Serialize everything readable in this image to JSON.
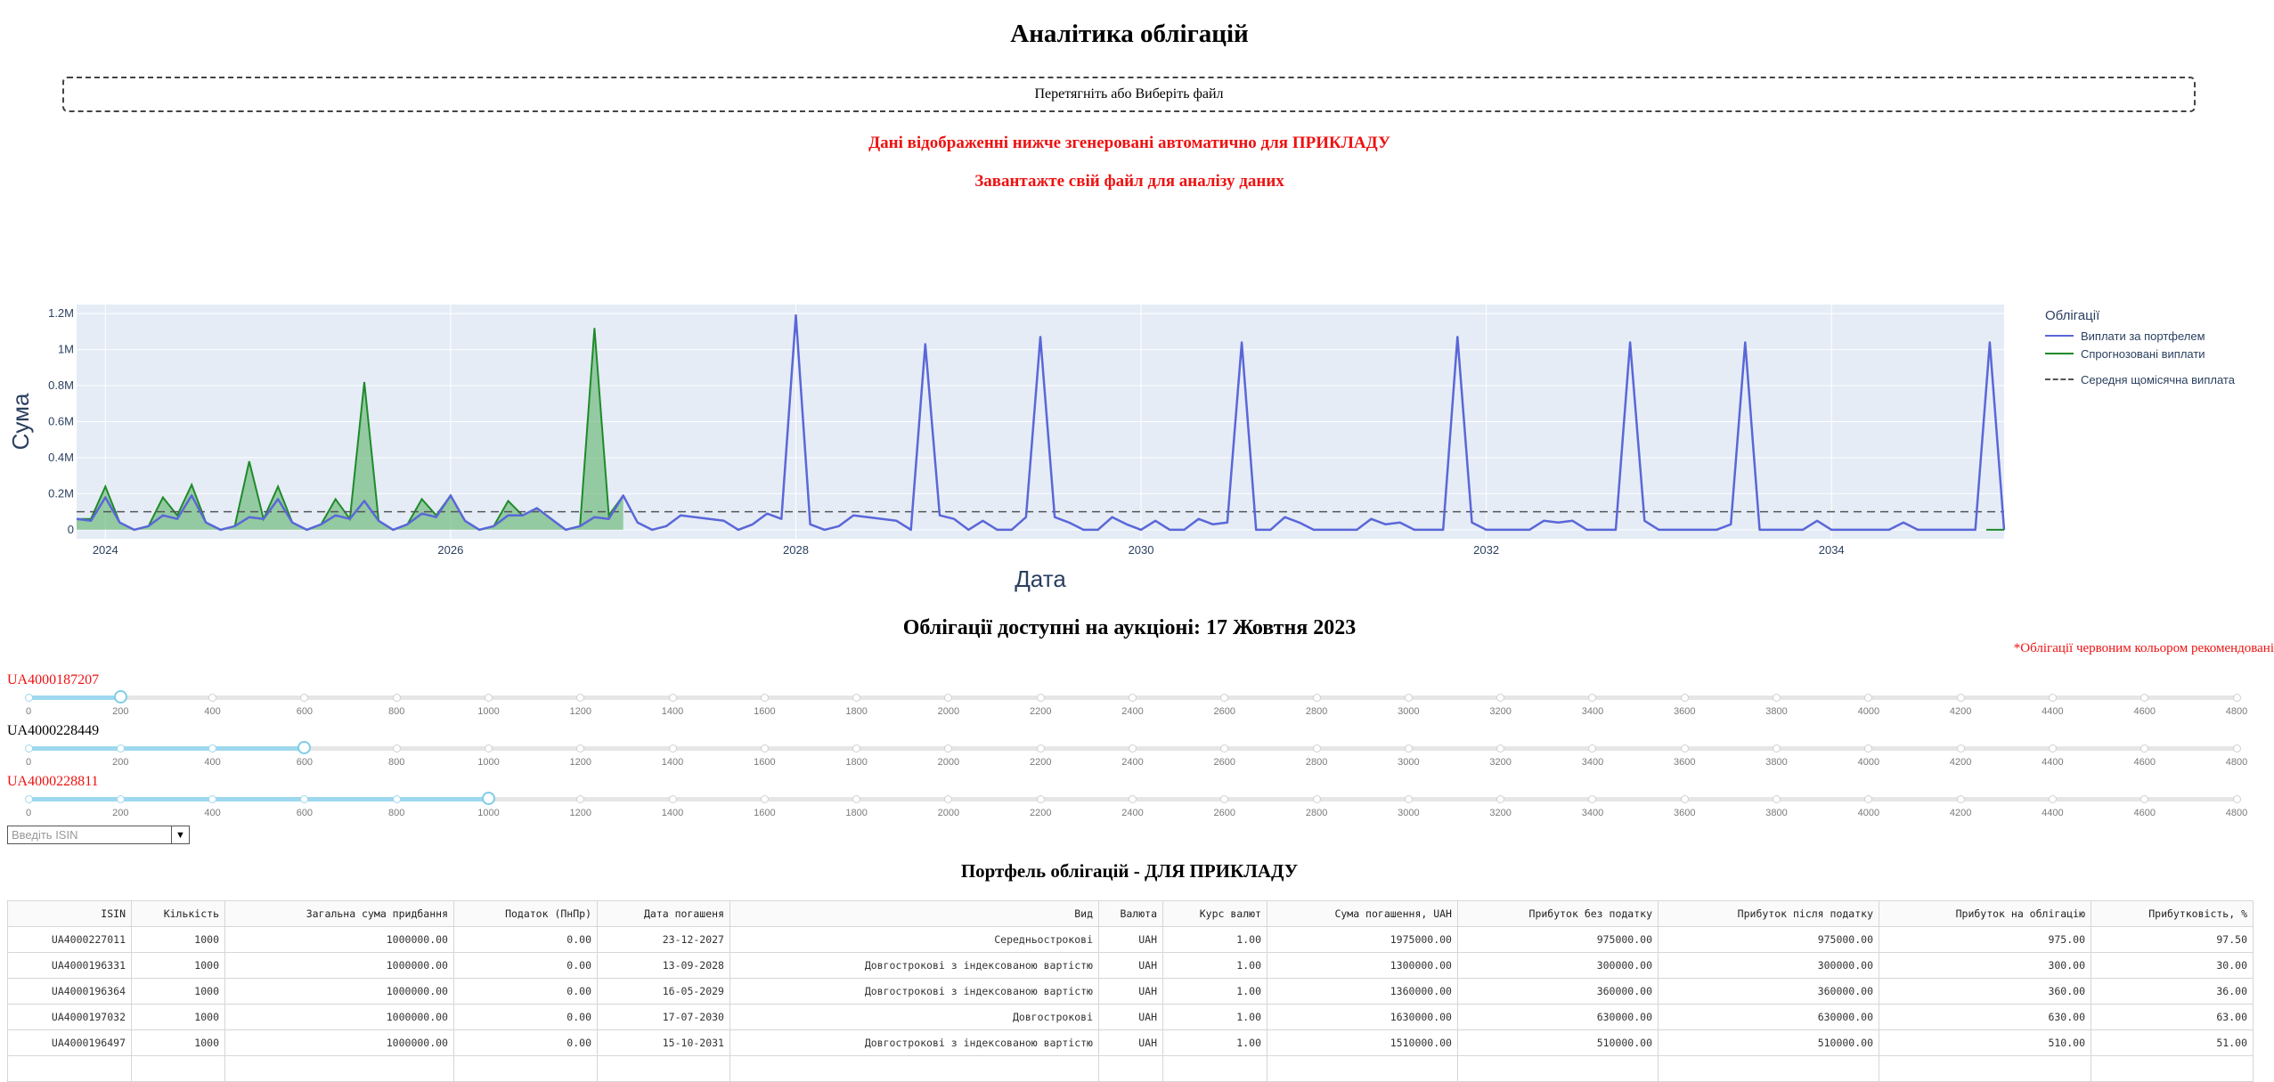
{
  "page": {
    "title": "Аналітика облігацій",
    "upload": {
      "prefix": "Перетягніть або",
      "link": "Виберіть файл"
    },
    "notice_example": "Дані відображенні нижче згенеровані автоматично для ПРИКЛАДУ",
    "notice_upload": "Завантажте свій файл для аналізу даних"
  },
  "colors": {
    "portfolio_line": "#5a67d8",
    "forecast_line": "#1f8a2a",
    "forecast_fill": "#5cb46b",
    "plot_bg": "#e5ecf6",
    "recommended": "#ee1111"
  },
  "chart_data": {
    "type": "line",
    "xlabel": "Дата",
    "ylabel": "Сума",
    "x_ticks": [
      "2024",
      "2026",
      "2028",
      "2030",
      "2032",
      "2034"
    ],
    "y_ticks": [
      "0",
      "0.2M",
      "0.4M",
      "0.6M",
      "0.8M",
      "1M",
      "1.2M"
    ],
    "xlim": [
      "2023-11",
      "2035-01"
    ],
    "ylim": [
      -50000,
      1250000
    ],
    "legend_title": "Облігації",
    "legend_position": "right",
    "series": [
      {
        "name": "Виплати за портфелем",
        "kind": "line",
        "color": "#5a67d8",
        "points": [
          [
            "2023-11",
            60000
          ],
          [
            "2023-12",
            50000
          ],
          [
            "2024-01",
            180000
          ],
          [
            "2024-02",
            40000
          ],
          [
            "2024-03",
            0
          ],
          [
            "2024-04",
            20000
          ],
          [
            "2024-05",
            80000
          ],
          [
            "2024-06",
            60000
          ],
          [
            "2024-07",
            190000
          ],
          [
            "2024-08",
            40000
          ],
          [
            "2024-09",
            0
          ],
          [
            "2024-10",
            20000
          ],
          [
            "2024-11",
            70000
          ],
          [
            "2024-12",
            60000
          ],
          [
            "2025-01",
            170000
          ],
          [
            "2025-02",
            40000
          ],
          [
            "2025-03",
            0
          ],
          [
            "2025-04",
            30000
          ],
          [
            "2025-05",
            80000
          ],
          [
            "2025-06",
            60000
          ],
          [
            "2025-07",
            160000
          ],
          [
            "2025-08",
            50000
          ],
          [
            "2025-09",
            0
          ],
          [
            "2025-10",
            30000
          ],
          [
            "2025-11",
            90000
          ],
          [
            "2025-12",
            70000
          ],
          [
            "2026-01",
            190000
          ],
          [
            "2026-02",
            50000
          ],
          [
            "2026-03",
            0
          ],
          [
            "2026-04",
            20000
          ],
          [
            "2026-05",
            80000
          ],
          [
            "2026-06",
            80000
          ],
          [
            "2026-07",
            120000
          ],
          [
            "2026-08",
            60000
          ],
          [
            "2026-09",
            0
          ],
          [
            "2026-10",
            20000
          ],
          [
            "2026-11",
            70000
          ],
          [
            "2026-12",
            60000
          ],
          [
            "2027-01",
            190000
          ],
          [
            "2027-02",
            40000
          ],
          [
            "2027-03",
            0
          ],
          [
            "2027-04",
            20000
          ],
          [
            "2027-05",
            80000
          ],
          [
            "2027-06",
            70000
          ],
          [
            "2027-07",
            60000
          ],
          [
            "2027-08",
            50000
          ],
          [
            "2027-09",
            0
          ],
          [
            "2027-10",
            30000
          ],
          [
            "2027-11",
            90000
          ],
          [
            "2027-12",
            60000
          ],
          [
            "2028-01",
            1190000
          ],
          [
            "2028-02",
            30000
          ],
          [
            "2028-03",
            0
          ],
          [
            "2028-04",
            20000
          ],
          [
            "2028-05",
            80000
          ],
          [
            "2028-06",
            70000
          ],
          [
            "2028-07",
            60000
          ],
          [
            "2028-08",
            50000
          ],
          [
            "2028-09",
            0
          ],
          [
            "2028-10",
            1030000
          ],
          [
            "2028-11",
            80000
          ],
          [
            "2028-12",
            60000
          ],
          [
            "2029-01",
            0
          ],
          [
            "2029-02",
            50000
          ],
          [
            "2029-03",
            0
          ],
          [
            "2029-04",
            0
          ],
          [
            "2029-05",
            70000
          ],
          [
            "2029-06",
            1070000
          ],
          [
            "2029-07",
            70000
          ],
          [
            "2029-08",
            40000
          ],
          [
            "2029-09",
            0
          ],
          [
            "2029-10",
            0
          ],
          [
            "2029-11",
            70000
          ],
          [
            "2029-12",
            30000
          ],
          [
            "2030-01",
            0
          ],
          [
            "2030-02",
            50000
          ],
          [
            "2030-03",
            0
          ],
          [
            "2030-04",
            0
          ],
          [
            "2030-05",
            60000
          ],
          [
            "2030-06",
            30000
          ],
          [
            "2030-07",
            40000
          ],
          [
            "2030-08",
            1040000
          ],
          [
            "2030-09",
            0
          ],
          [
            "2030-10",
            0
          ],
          [
            "2030-11",
            70000
          ],
          [
            "2030-12",
            40000
          ],
          [
            "2031-01",
            0
          ],
          [
            "2031-02",
            0
          ],
          [
            "2031-03",
            0
          ],
          [
            "2031-04",
            0
          ],
          [
            "2031-05",
            60000
          ],
          [
            "2031-06",
            30000
          ],
          [
            "2031-07",
            40000
          ],
          [
            "2031-08",
            0
          ],
          [
            "2031-09",
            0
          ],
          [
            "2031-10",
            0
          ],
          [
            "2031-11",
            1070000
          ],
          [
            "2031-12",
            40000
          ],
          [
            "2032-01",
            0
          ],
          [
            "2032-02",
            0
          ],
          [
            "2032-03",
            0
          ],
          [
            "2032-04",
            0
          ],
          [
            "2032-05",
            50000
          ],
          [
            "2032-06",
            40000
          ],
          [
            "2032-07",
            50000
          ],
          [
            "2032-08",
            0
          ],
          [
            "2032-09",
            0
          ],
          [
            "2032-10",
            0
          ],
          [
            "2032-11",
            1040000
          ],
          [
            "2032-12",
            50000
          ],
          [
            "2033-01",
            0
          ],
          [
            "2033-02",
            0
          ],
          [
            "2033-03",
            0
          ],
          [
            "2033-04",
            0
          ],
          [
            "2033-05",
            0
          ],
          [
            "2033-06",
            30000
          ],
          [
            "2033-07",
            1040000
          ],
          [
            "2033-08",
            0
          ],
          [
            "2033-09",
            0
          ],
          [
            "2033-10",
            0
          ],
          [
            "2033-11",
            0
          ],
          [
            "2033-12",
            50000
          ],
          [
            "2034-01",
            0
          ],
          [
            "2034-02",
            0
          ],
          [
            "2034-03",
            0
          ],
          [
            "2034-04",
            0
          ],
          [
            "2034-05",
            0
          ],
          [
            "2034-06",
            40000
          ],
          [
            "2034-07",
            0
          ],
          [
            "2034-08",
            0
          ],
          [
            "2034-09",
            0
          ],
          [
            "2034-10",
            0
          ],
          [
            "2034-11",
            0
          ],
          [
            "2034-12",
            1040000
          ],
          [
            "2035-01",
            0
          ]
        ]
      },
      {
        "name": "Спрогнозовані виплати",
        "kind": "area",
        "color": "#1f8a2a",
        "points": [
          [
            "2023-11",
            60000
          ],
          [
            "2023-12",
            60000
          ],
          [
            "2024-01",
            240000
          ],
          [
            "2024-02",
            40000
          ],
          [
            "2024-03",
            0
          ],
          [
            "2024-04",
            20000
          ],
          [
            "2024-05",
            180000
          ],
          [
            "2024-06",
            80000
          ],
          [
            "2024-07",
            250000
          ],
          [
            "2024-08",
            40000
          ],
          [
            "2024-09",
            0
          ],
          [
            "2024-10",
            20000
          ],
          [
            "2024-11",
            380000
          ],
          [
            "2024-12",
            60000
          ],
          [
            "2025-01",
            240000
          ],
          [
            "2025-02",
            40000
          ],
          [
            "2025-03",
            0
          ],
          [
            "2025-04",
            30000
          ],
          [
            "2025-05",
            170000
          ],
          [
            "2025-06",
            60000
          ],
          [
            "2025-07",
            820000
          ],
          [
            "2025-08",
            50000
          ],
          [
            "2025-09",
            0
          ],
          [
            "2025-10",
            30000
          ],
          [
            "2025-11",
            170000
          ],
          [
            "2025-12",
            80000
          ],
          [
            "2026-01",
            190000
          ],
          [
            "2026-02",
            50000
          ],
          [
            "2026-03",
            0
          ],
          [
            "2026-04",
            20000
          ],
          [
            "2026-05",
            160000
          ],
          [
            "2026-06",
            80000
          ],
          [
            "2026-07",
            120000
          ],
          [
            "2026-08",
            60000
          ],
          [
            "2026-09",
            0
          ],
          [
            "2026-10",
            20000
          ],
          [
            "2026-11",
            1120000
          ],
          [
            "2026-12",
            80000
          ],
          [
            "2027-01",
            190000
          ]
        ]
      },
      {
        "name": "Середня щомісячна виплата",
        "kind": "dashed",
        "color": "#555555",
        "value": 100000
      }
    ]
  },
  "auction": {
    "title": "Облігації доступні на аукціоні: 17 Жовтня 2023",
    "note": "*Облігації червоним кольором рекомендовані",
    "slider_max": 4800,
    "slider_step": 200,
    "tick_labels": [
      "0",
      "200",
      "400",
      "600",
      "800",
      "1000",
      "1200",
      "1400",
      "1600",
      "1800",
      "2000",
      "2200",
      "2400",
      "2600",
      "2800",
      "3000",
      "3200",
      "3400",
      "3600",
      "3800",
      "4000",
      "4200",
      "4400",
      "4600",
      "4800"
    ],
    "bonds": [
      {
        "isin": "UA4000187207",
        "value": 200,
        "recommended": true
      },
      {
        "isin": "UA4000228449",
        "value": 600,
        "recommended": false
      },
      {
        "isin": "UA4000228811",
        "value": 1000,
        "recommended": true
      }
    ],
    "select_placeholder": "Введіть ISIN"
  },
  "portfolio": {
    "title": "Портфель облігацій - ДЛЯ ПРИКЛАДУ",
    "columns": [
      "ISIN",
      "Кількість",
      "Загальна сума придбання",
      "Податок (ПнПр)",
      "Дата погашеня",
      "Вид",
      "Валюта",
      "Курс валют",
      "Сума погашення, UAH",
      "Прибуток без податку",
      "Прибуток після податку",
      "Прибуток на облігацію",
      "Прибутковість, %"
    ],
    "rows": [
      [
        "UA4000227011",
        "1000",
        "1000000.00",
        "0.00",
        "23-12-2027",
        "Середньострокові",
        "UAH",
        "1.00",
        "1975000.00",
        "975000.00",
        "975000.00",
        "975.00",
        "97.50"
      ],
      [
        "UA4000196331",
        "1000",
        "1000000.00",
        "0.00",
        "13-09-2028",
        "Довгострокові з індексованою вартістю",
        "UAH",
        "1.00",
        "1300000.00",
        "300000.00",
        "300000.00",
        "300.00",
        "30.00"
      ],
      [
        "UA4000196364",
        "1000",
        "1000000.00",
        "0.00",
        "16-05-2029",
        "Довгострокові з індексованою вартістю",
        "UAH",
        "1.00",
        "1360000.00",
        "360000.00",
        "360000.00",
        "360.00",
        "36.00"
      ],
      [
        "UA4000197032",
        "1000",
        "1000000.00",
        "0.00",
        "17-07-2030",
        "Довгострокові",
        "UAH",
        "1.00",
        "1630000.00",
        "630000.00",
        "630000.00",
        "630.00",
        "63.00"
      ],
      [
        "UA4000196497",
        "1000",
        "1000000.00",
        "0.00",
        "15-10-2031",
        "Довгострокові з індексованою вартістю",
        "UAH",
        "1.00",
        "1510000.00",
        "510000.00",
        "510000.00",
        "510.00",
        "51.00"
      ],
      [
        "",
        "",
        "",
        "",
        "",
        "",
        "",
        "",
        "",
        "",
        "",
        "",
        ""
      ]
    ]
  }
}
